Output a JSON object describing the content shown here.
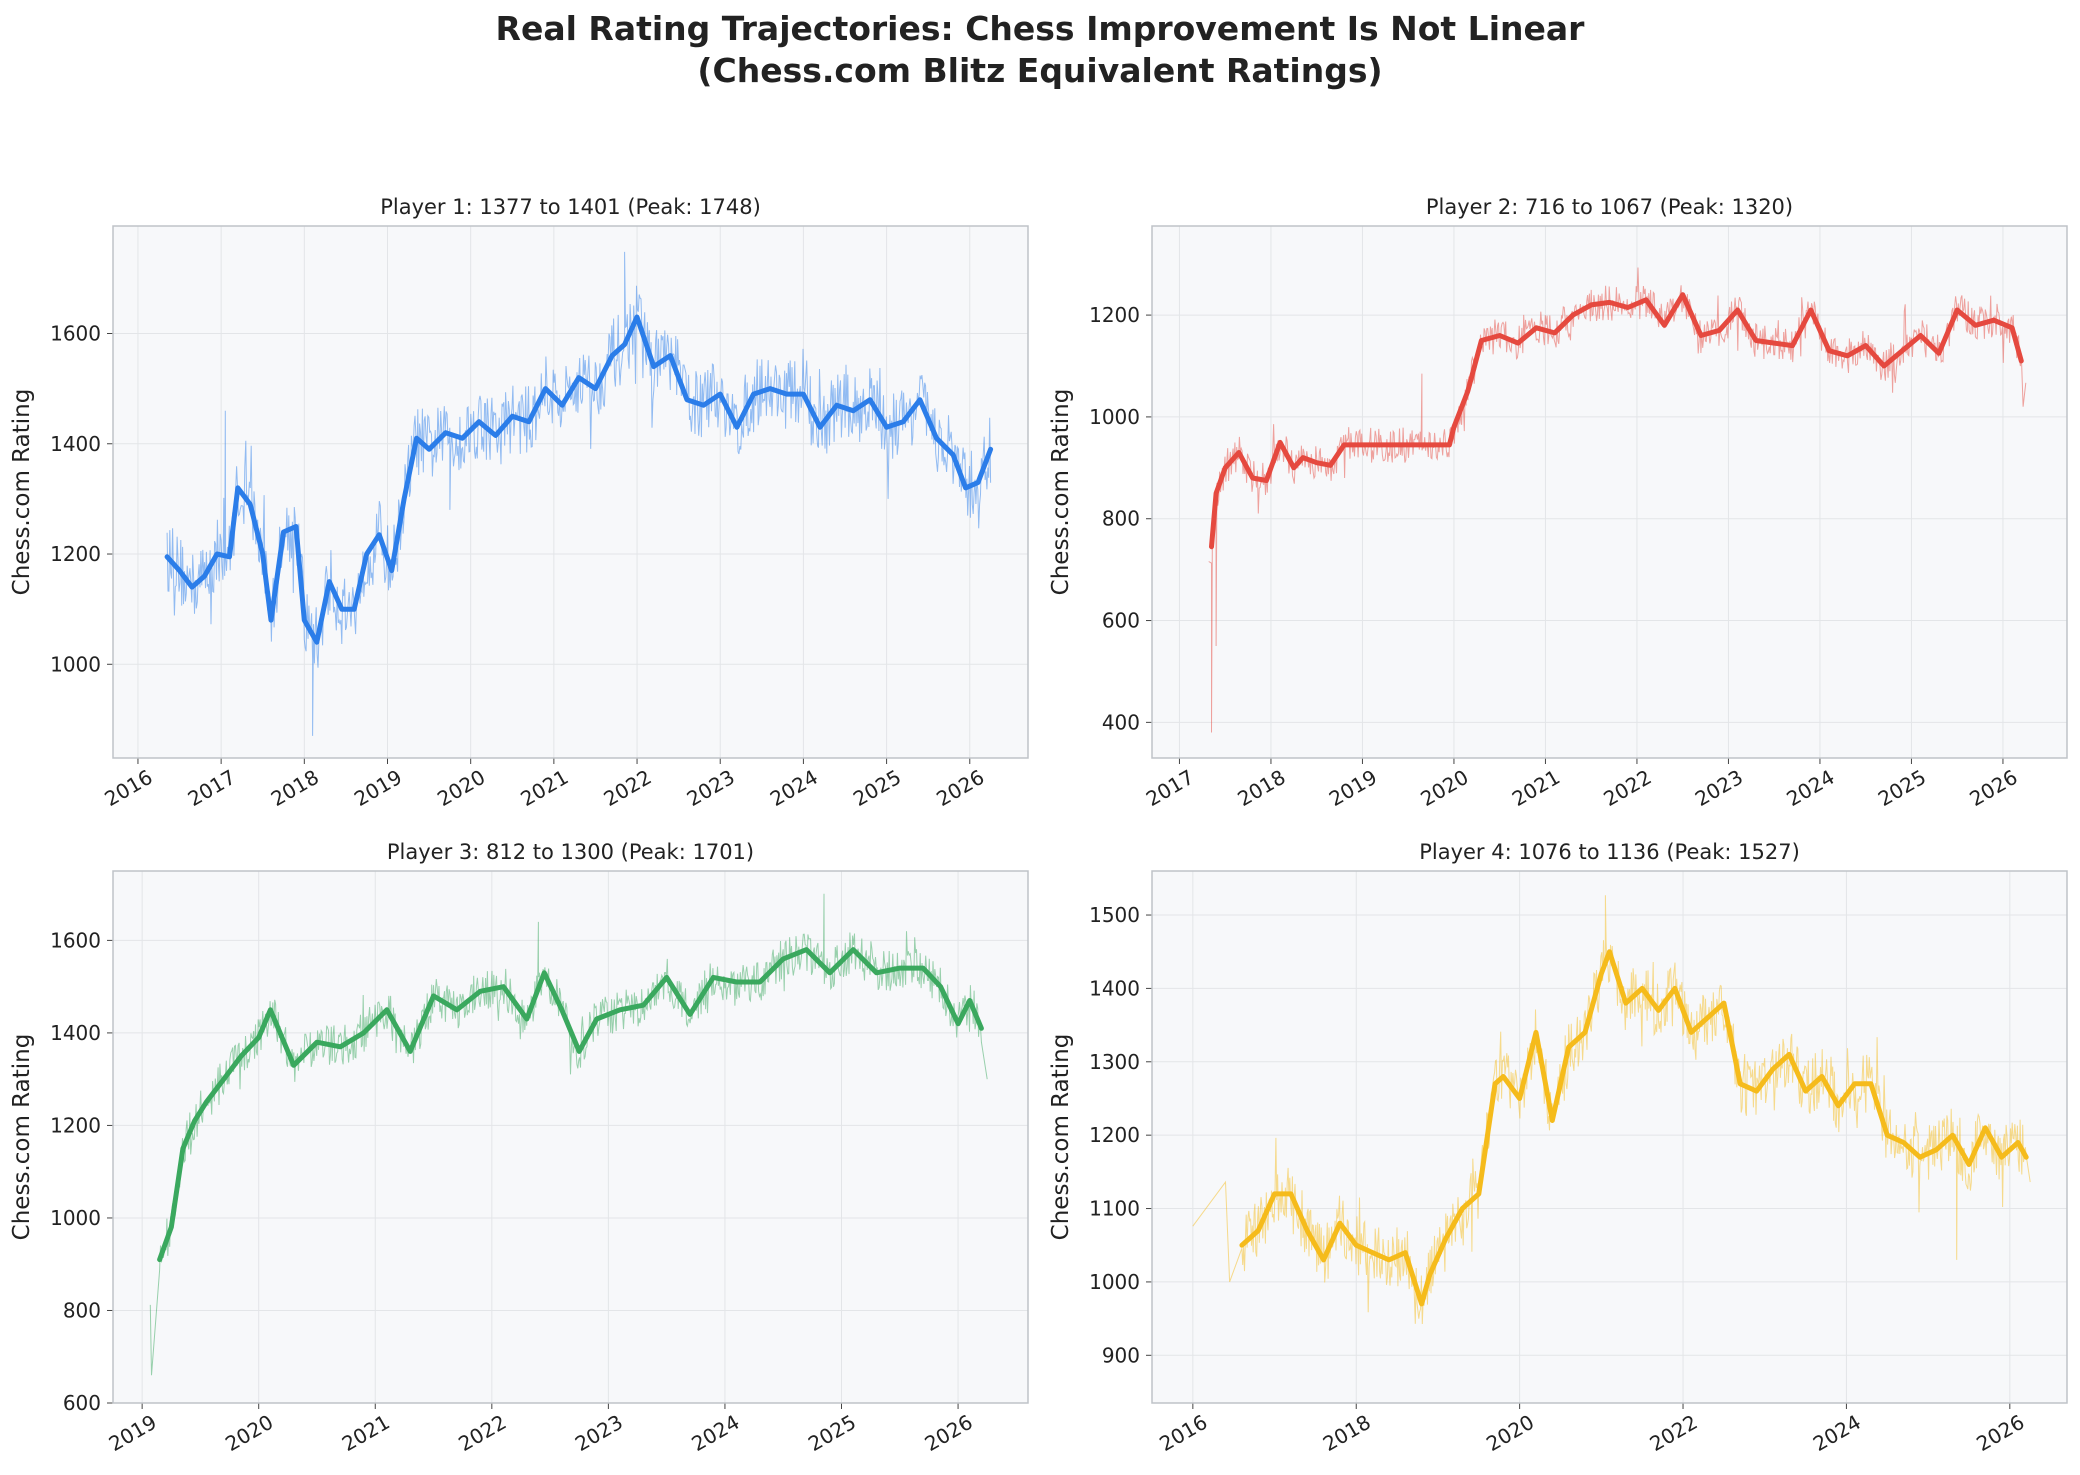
{
  "figure": {
    "title_line1": "Real Rating Trajectories: Chess Improvement Is Not Linear",
    "title_line2": "(Chess.com Blitz Equivalent Ratings)"
  },
  "chart_data": [
    {
      "type": "line",
      "title": "Player 1: 1377 to 1401 (Peak: 1748)",
      "xlabel": "",
      "ylabel": "Chess.com Rating",
      "color": "#2b7de9",
      "xlim": [
        2015.7,
        2026.7
      ],
      "ylim": [
        830,
        1795
      ],
      "xticks": [
        2016,
        2017,
        2018,
        2019,
        2020,
        2021,
        2022,
        2023,
        2024,
        2025,
        2026
      ],
      "yticks": [
        1000,
        1200,
        1400,
        1600
      ],
      "grid": true,
      "series": [
        {
          "role": "smoothed",
          "x": [
            2016.35,
            2016.5,
            2016.65,
            2016.8,
            2016.95,
            2017.1,
            2017.2,
            2017.35,
            2017.5,
            2017.6,
            2017.75,
            2017.9,
            2018.0,
            2018.15,
            2018.3,
            2018.45,
            2018.6,
            2018.75,
            2018.9,
            2019.05,
            2019.2,
            2019.35,
            2019.5,
            2019.7,
            2019.9,
            2020.1,
            2020.3,
            2020.5,
            2020.7,
            2020.9,
            2021.1,
            2021.3,
            2021.5,
            2021.7,
            2021.85,
            2022.0,
            2022.2,
            2022.4,
            2022.6,
            2022.8,
            2023.0,
            2023.2,
            2023.4,
            2023.6,
            2023.8,
            2024.0,
            2024.2,
            2024.4,
            2024.6,
            2024.8,
            2025.0,
            2025.2,
            2025.4,
            2025.6,
            2025.8,
            2025.95,
            2026.1,
            2026.25
          ],
          "values": [
            1195,
            1170,
            1140,
            1160,
            1200,
            1195,
            1320,
            1290,
            1200,
            1080,
            1240,
            1250,
            1080,
            1040,
            1150,
            1100,
            1100,
            1200,
            1235,
            1170,
            1300,
            1410,
            1390,
            1420,
            1410,
            1440,
            1415,
            1450,
            1440,
            1500,
            1470,
            1520,
            1500,
            1560,
            1580,
            1630,
            1540,
            1560,
            1480,
            1470,
            1490,
            1430,
            1490,
            1500,
            1490,
            1490,
            1430,
            1470,
            1460,
            1480,
            1430,
            1440,
            1480,
            1410,
            1380,
            1320,
            1330,
            1390
          ]
        },
        {
          "role": "raw",
          "noise": 65,
          "extra": [
            [
              2019.75,
              1280
            ],
            [
              2021.85,
              1748
            ],
            [
              2018.1,
              870
            ],
            [
              2017.05,
              1460
            ]
          ]
        }
      ]
    },
    {
      "type": "line",
      "title": "Player 2: 716 to 1067 (Peak: 1320)",
      "xlabel": "",
      "ylabel": "Chess.com Rating",
      "color": "#e5493f",
      "xlim": [
        2016.7,
        2026.7
      ],
      "ylim": [
        330,
        1375
      ],
      "xticks": [
        2017,
        2018,
        2019,
        2020,
        2021,
        2022,
        2023,
        2024,
        2025,
        2026
      ],
      "yticks": [
        400,
        600,
        800,
        1000,
        1200
      ],
      "grid": true,
      "series": [
        {
          "role": "smoothed",
          "x": [
            2017.35,
            2017.4,
            2017.5,
            2017.65,
            2017.8,
            2017.95,
            2018.1,
            2018.25,
            2018.35,
            2018.5,
            2018.65,
            2018.8,
            2019.0,
            2019.5,
            2019.95,
            2020.0,
            2020.15,
            2020.3,
            2020.5,
            2020.7,
            2020.9,
            2021.1,
            2021.3,
            2021.5,
            2021.7,
            2021.9,
            2022.1,
            2022.3,
            2022.5,
            2022.7,
            2022.9,
            2023.1,
            2023.3,
            2023.5,
            2023.7,
            2023.9,
            2024.1,
            2024.3,
            2024.5,
            2024.7,
            2024.9,
            2025.1,
            2025.3,
            2025.5,
            2025.7,
            2025.9,
            2026.1,
            2026.2
          ],
          "values": [
            745,
            850,
            900,
            930,
            880,
            875,
            950,
            900,
            920,
            910,
            905,
            945,
            945,
            945,
            945,
            980,
            1050,
            1150,
            1160,
            1145,
            1175,
            1165,
            1200,
            1220,
            1225,
            1215,
            1230,
            1180,
            1240,
            1160,
            1170,
            1210,
            1150,
            1145,
            1140,
            1210,
            1130,
            1120,
            1140,
            1100,
            1130,
            1160,
            1125,
            1210,
            1180,
            1190,
            1175,
            1110
          ]
        },
        {
          "role": "raw",
          "noise": 35,
          "extra": [
            [
              2017.35,
              380
            ],
            [
              2017.32,
              716
            ],
            [
              2017.4,
              550
            ],
            [
              2018.85,
              980
            ],
            [
              2019.65,
              1085
            ],
            [
              2026.22,
              1020
            ],
            [
              2026.25,
              1067
            ]
          ]
        }
      ]
    },
    {
      "type": "line",
      "title": "Player 3: 812 to 1300 (Peak: 1701)",
      "xlabel": "",
      "ylabel": "Chess.com Rating",
      "color": "#3aa85e",
      "xlim": [
        2018.75,
        2026.6
      ],
      "ylim": [
        600,
        1750
      ],
      "xticks": [
        2019,
        2020,
        2021,
        2022,
        2023,
        2024,
        2025,
        2026
      ],
      "yticks": [
        600,
        800,
        1000,
        1200,
        1400,
        1600
      ],
      "grid": true,
      "series": [
        {
          "role": "smoothed",
          "x": [
            2019.15,
            2019.25,
            2019.35,
            2019.45,
            2019.55,
            2019.7,
            2019.85,
            2020.0,
            2020.1,
            2020.3,
            2020.5,
            2020.7,
            2020.9,
            2021.1,
            2021.3,
            2021.5,
            2021.7,
            2021.9,
            2022.1,
            2022.3,
            2022.45,
            2022.6,
            2022.75,
            2022.9,
            2023.1,
            2023.3,
            2023.5,
            2023.7,
            2023.9,
            2024.1,
            2024.3,
            2024.5,
            2024.7,
            2024.9,
            2025.1,
            2025.3,
            2025.5,
            2025.7,
            2025.85,
            2026.0,
            2026.1,
            2026.2
          ],
          "values": [
            910,
            980,
            1150,
            1210,
            1250,
            1300,
            1350,
            1390,
            1450,
            1330,
            1380,
            1370,
            1400,
            1450,
            1360,
            1480,
            1450,
            1490,
            1500,
            1430,
            1530,
            1450,
            1360,
            1430,
            1450,
            1460,
            1520,
            1440,
            1520,
            1510,
            1510,
            1560,
            1580,
            1530,
            1580,
            1530,
            1540,
            1540,
            1500,
            1420,
            1470,
            1410
          ]
        },
        {
          "role": "raw",
          "noise": 45,
          "extra": [
            [
              2019.07,
              812
            ],
            [
              2019.08,
              660
            ],
            [
              2022.4,
              1640
            ],
            [
              2024.85,
              1701
            ],
            [
              2026.25,
              1300
            ]
          ]
        }
      ]
    },
    {
      "type": "line",
      "title": "Player 4: 1076 to 1136 (Peak: 1527)",
      "xlabel": "",
      "ylabel": "Chess.com Rating",
      "color": "#f5bb1b",
      "xlim": [
        2015.5,
        2026.7
      ],
      "ylim": [
        835,
        1560
      ],
      "xticks": [
        2016,
        2018,
        2020,
        2022,
        2024,
        2026
      ],
      "yticks": [
        900,
        1000,
        1100,
        1200,
        1300,
        1400,
        1500
      ],
      "grid": true,
      "series": [
        {
          "role": "smoothed",
          "x": [
            2016.6,
            2016.8,
            2017.0,
            2017.2,
            2017.4,
            2017.6,
            2017.8,
            2018.0,
            2018.2,
            2018.4,
            2018.6,
            2018.8,
            2018.9,
            2019.1,
            2019.3,
            2019.5,
            2019.7,
            2019.8,
            2020.0,
            2020.2,
            2020.4,
            2020.6,
            2020.8,
            2021.0,
            2021.1,
            2021.3,
            2021.5,
            2021.7,
            2021.9,
            2022.1,
            2022.3,
            2022.5,
            2022.7,
            2022.9,
            2023.1,
            2023.3,
            2023.5,
            2023.7,
            2023.9,
            2024.1,
            2024.3,
            2024.5,
            2024.7,
            2024.9,
            2025.1,
            2025.3,
            2025.5,
            2025.7,
            2025.9,
            2026.1,
            2026.2
          ],
          "values": [
            1050,
            1070,
            1120,
            1120,
            1070,
            1030,
            1080,
            1050,
            1040,
            1030,
            1040,
            970,
            1010,
            1060,
            1100,
            1120,
            1270,
            1280,
            1250,
            1340,
            1220,
            1320,
            1340,
            1420,
            1450,
            1380,
            1400,
            1370,
            1400,
            1340,
            1360,
            1380,
            1270,
            1260,
            1290,
            1310,
            1260,
            1280,
            1240,
            1270,
            1270,
            1200,
            1190,
            1170,
            1180,
            1200,
            1160,
            1210,
            1170,
            1190,
            1170
          ]
        },
        {
          "role": "raw",
          "noise": 40,
          "extra": [
            [
              2016.0,
              1076
            ],
            [
              2016.4,
              1136
            ],
            [
              2016.45,
              1000
            ],
            [
              2021.05,
              1527
            ],
            [
              2025.35,
              1030
            ],
            [
              2026.25,
              1136
            ]
          ]
        }
      ]
    }
  ]
}
